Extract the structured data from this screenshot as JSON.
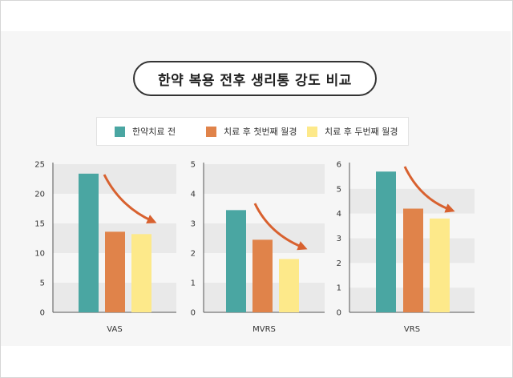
{
  "title": "한약 복용 전후 생리통 강도 비교",
  "legend": [
    "한약치료 전",
    "치료 후 첫번째 월경",
    "치료 후 두번째 월경"
  ],
  "colors": {
    "before": "#4aa6a2",
    "after1": "#e0834a",
    "after2": "#fde98a",
    "arrow": "#d8612f",
    "band": "#e9e9e9"
  },
  "chart_data": [
    {
      "type": "bar",
      "xlabel": "VAS",
      "ylim": [
        0,
        25
      ],
      "yticks": [
        "0",
        "5",
        "10",
        "15",
        "20",
        "25"
      ],
      "series": [
        {
          "name": "한약치료 전",
          "values": [
            23.4
          ]
        },
        {
          "name": "치료 후 첫번째 월경",
          "values": [
            13.6
          ]
        },
        {
          "name": "치료 후 두번째 월경",
          "values": [
            13.2
          ]
        }
      ],
      "grid": "alternating horizontal bands"
    },
    {
      "type": "bar",
      "xlabel": "MVRS",
      "ylim": [
        0,
        5
      ],
      "yticks": [
        "0",
        "1",
        "2",
        "3",
        "4",
        "5"
      ],
      "series": [
        {
          "name": "한약치료 전",
          "values": [
            3.45
          ]
        },
        {
          "name": "치료 후 첫번째 월경",
          "values": [
            2.45
          ]
        },
        {
          "name": "치료 후 두번째 월경",
          "values": [
            1.8
          ]
        }
      ],
      "grid": "alternating horizontal bands"
    },
    {
      "type": "bar",
      "xlabel": "VRS",
      "ylim": [
        0,
        6
      ],
      "yticks": [
        "0",
        "1",
        "2",
        "3",
        "4",
        "5",
        "6"
      ],
      "series": [
        {
          "name": "한약치료 전",
          "values": [
            5.7
          ]
        },
        {
          "name": "치료 후 첫번째 월경",
          "values": [
            4.2
          ]
        },
        {
          "name": "치료 후 두번째 월경",
          "values": [
            3.8
          ]
        }
      ],
      "grid": "alternating horizontal bands"
    }
  ]
}
